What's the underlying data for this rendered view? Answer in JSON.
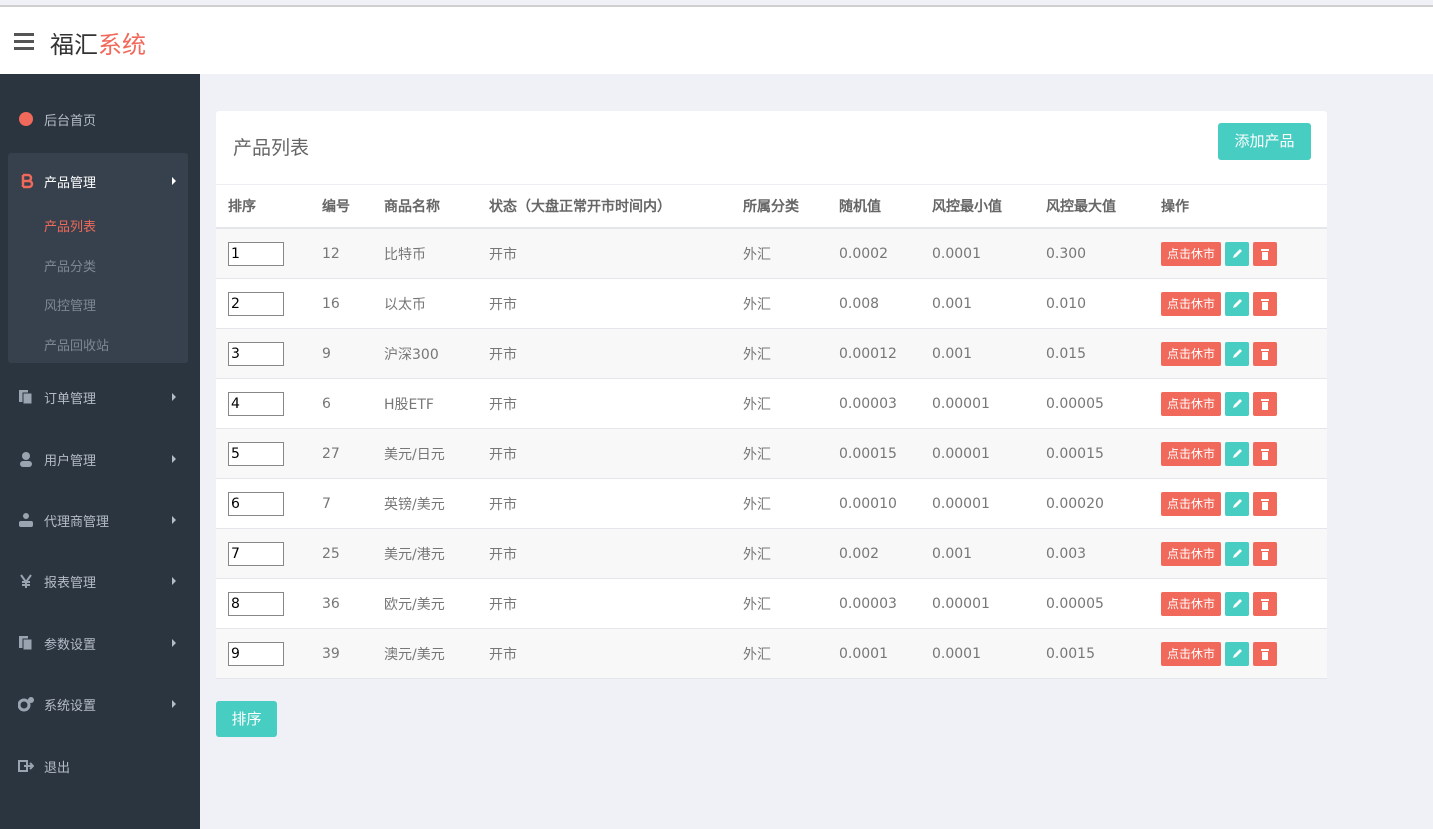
{
  "header": {
    "brand": "福汇",
    "brand_accent": "系统"
  },
  "sidebar": {
    "items": [
      {
        "label": "后台首页"
      },
      {
        "label": "产品管理",
        "children": [
          "产品列表",
          "产品分类",
          "风控管理",
          "产品回收站"
        ]
      },
      {
        "label": "订单管理"
      },
      {
        "label": "用户管理"
      },
      {
        "label": "代理商管理"
      },
      {
        "label": "报表管理"
      },
      {
        "label": "参数设置"
      },
      {
        "label": "系统设置"
      },
      {
        "label": "退出"
      }
    ]
  },
  "panel": {
    "title": "产品列表",
    "add_button": "添加产品"
  },
  "table": {
    "columns": [
      "排序",
      "编号",
      "商品名称",
      "状态（大盘正常开市时间内）",
      "所属分类",
      "随机值",
      "风控最小值",
      "风控最大值",
      "操作"
    ],
    "rows": [
      [
        "1",
        "12",
        "比特币",
        "开市",
        "外汇",
        "0.0002",
        "0.0001",
        "0.300",
        "点击休市"
      ],
      [
        "2",
        "16",
        "以太币",
        "开市",
        "外汇",
        "0.008",
        "0.001",
        "0.010",
        "点击休市"
      ],
      [
        "3",
        "9",
        "沪深300",
        "开市",
        "外汇",
        "0.00012",
        "0.001",
        "0.015",
        "点击休市"
      ],
      [
        "4",
        "6",
        "H股ETF",
        "开市",
        "外汇",
        "0.00003",
        "0.00001",
        "0.00005",
        "点击休市"
      ],
      [
        "5",
        "27",
        "美元/日元",
        "开市",
        "外汇",
        "0.00015",
        "0.00001",
        "0.00015",
        "点击休市"
      ],
      [
        "6",
        "7",
        "英镑/美元",
        "开市",
        "外汇",
        "0.00010",
        "0.00001",
        "0.00020",
        "点击休市"
      ],
      [
        "7",
        "25",
        "美元/港元",
        "开市",
        "外汇",
        "0.002",
        "0.001",
        "0.003",
        "点击休市"
      ],
      [
        "8",
        "36",
        "欧元/美元",
        "开市",
        "外汇",
        "0.00003",
        "0.00001",
        "0.00005",
        "点击休市"
      ],
      [
        "9",
        "39",
        "澳元/美元",
        "开市",
        "外汇",
        "0.0001",
        "0.0001",
        "0.0015",
        "点击休市"
      ]
    ]
  },
  "sort_button": "排序"
}
